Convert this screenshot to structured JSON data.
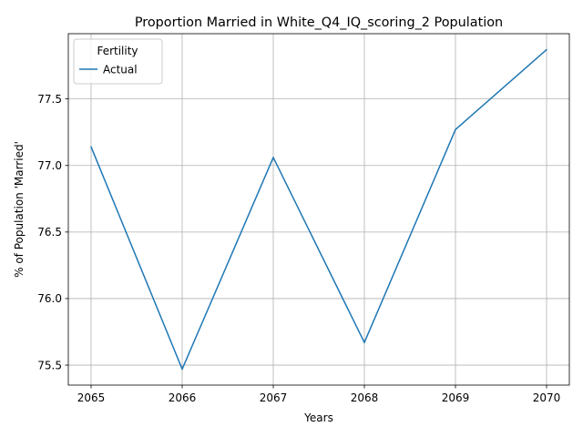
{
  "chart_data": {
    "type": "line",
    "title": "Proportion Married in White_Q4_IQ_scoring_2 Population",
    "xlabel": "Years",
    "ylabel": "% of Population 'Married'",
    "x": [
      2065,
      2066,
      2067,
      2068,
      2069,
      2070
    ],
    "xticks": [
      "2065",
      "2066",
      "2067",
      "2068",
      "2069",
      "2070"
    ],
    "yticks": [
      "75.5",
      "76.0",
      "76.5",
      "77.0",
      "77.5"
    ],
    "ytick_values": [
      75.5,
      76.0,
      76.5,
      77.0,
      77.5
    ],
    "xlim": [
      2064.75,
      2070.25
    ],
    "ylim": [
      75.35,
      77.99
    ],
    "grid": true,
    "legend": {
      "title": "Fertility",
      "location": "upper-left"
    },
    "series": [
      {
        "name": "Actual",
        "color": "#1f77b4",
        "values": [
          77.14,
          75.47,
          77.06,
          75.67,
          77.27,
          77.87
        ]
      }
    ]
  }
}
